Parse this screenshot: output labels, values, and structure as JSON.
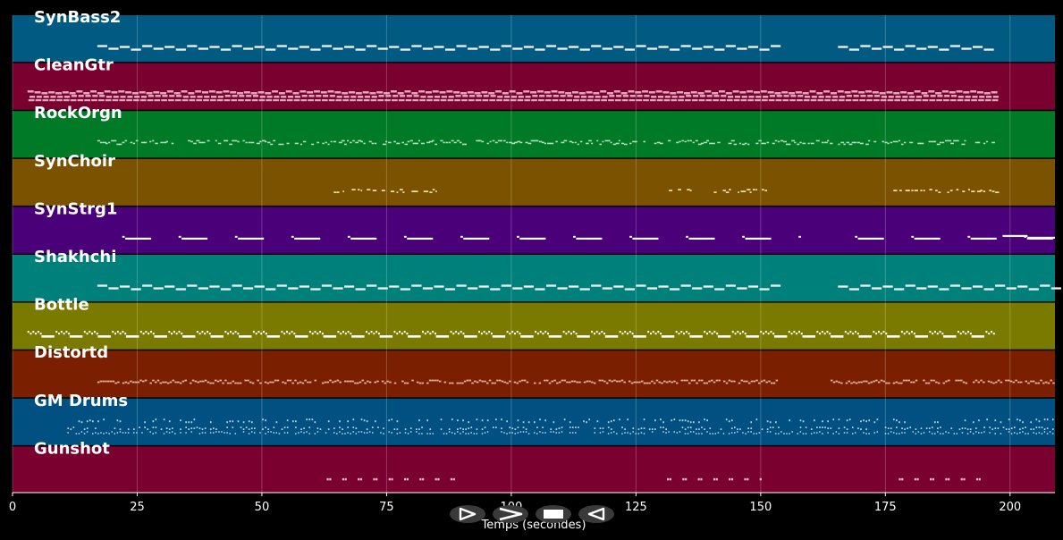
{
  "chart_data": {
    "type": "piano-roll",
    "xlabel": "Temps (secondes)",
    "xlim": [
      0,
      209
    ],
    "xticks": [
      0,
      25,
      50,
      75,
      100,
      125,
      150,
      175,
      200
    ],
    "tracks": [
      {
        "name": "SynBass2",
        "color": "#005a82",
        "pattern": "bass",
        "start": 17,
        "end": 197,
        "gap": [
          153,
          164
        ],
        "note_color": "#ffffff"
      },
      {
        "name": "CleanGtr",
        "color": "#7a0030",
        "pattern": "guitar",
        "start": 3,
        "end": 197,
        "gap": null,
        "note_color": "#f2c4d4"
      },
      {
        "name": "RockOrgn",
        "color": "#007a26",
        "pattern": "organ",
        "start": 17,
        "end": 197,
        "gap": null,
        "note_color": "#c8e8c8"
      },
      {
        "name": "SynChoir",
        "color": "#7a5200",
        "pattern": "choir",
        "start": 62,
        "end": 197,
        "gap": [
          85,
          131
        ],
        "gap2": [
          152,
          176
        ],
        "note_color": "#f0e0b0"
      },
      {
        "name": "SynStrg1",
        "color": "#4a0078",
        "pattern": "strings",
        "start": 22,
        "end": 209,
        "gap": [
          158,
          168
        ],
        "note_color": "#ffffff"
      },
      {
        "name": "Shakhchi",
        "color": "#00807a",
        "pattern": "bass",
        "start": 17,
        "end": 209,
        "gap": [
          153,
          164
        ],
        "note_color": "#ffffff"
      },
      {
        "name": "Bottle",
        "color": "#7a7a00",
        "pattern": "bottle",
        "start": 3,
        "end": 197,
        "gap": null,
        "note_color": "#ffffff"
      },
      {
        "name": "Distortd",
        "color": "#7a2000",
        "pattern": "distort",
        "start": 17,
        "end": 209,
        "gap": [
          153,
          164
        ],
        "note_color": "#f2c0b0"
      },
      {
        "name": "GM Drums",
        "color": "#005082",
        "pattern": "drums",
        "start": 11,
        "end": 209,
        "gap": null,
        "note_color": "#c8ddf0"
      },
      {
        "name": "Gunshot",
        "color": "#7a0030",
        "pattern": "gunshot",
        "start": 63,
        "end": 195,
        "gap": [
          90,
          131
        ],
        "gap2": [
          150,
          176
        ],
        "note_color": "#f2c4d4"
      }
    ]
  },
  "controls": [
    {
      "name": "play-button",
      "icon": "play-icon"
    },
    {
      "name": "fast-forward-button",
      "icon": "fast-forward-icon"
    },
    {
      "name": "stop-button",
      "icon": "stop-icon"
    },
    {
      "name": "rewind-button",
      "icon": "rewind-icon"
    }
  ]
}
